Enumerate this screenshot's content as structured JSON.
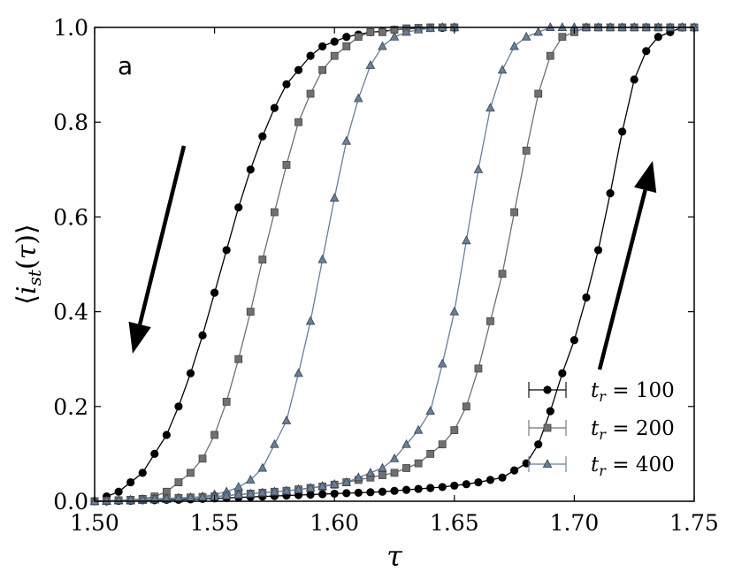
{
  "chart_data": {
    "type": "line",
    "xlabel": "τ",
    "ylabel": "⟨i_st(τ)⟩",
    "xlim": [
      1.5,
      1.75
    ],
    "ylim": [
      0.0,
      1.0
    ],
    "x_ticks": [
      "1.50",
      "1.55",
      "1.60",
      "1.65",
      "1.70",
      "1.75"
    ],
    "y_ticks": [
      "0.0",
      "0.2",
      "0.4",
      "0.6",
      "0.8",
      "1.0"
    ],
    "panel_label": "a",
    "legend_position": "lower-right",
    "annotations": [
      {
        "type": "arrow",
        "direction": "down",
        "meaning": "decreasing τ branch"
      },
      {
        "type": "arrow",
        "direction": "up",
        "meaning": "increasing τ branch"
      }
    ],
    "series": [
      {
        "name": "t_r = 100",
        "legend_sub": "r",
        "legend_value": "100",
        "marker": "circle",
        "color": "#000000",
        "branches": [
          {
            "x": [
              1.505,
              1.51,
              1.515,
              1.52,
              1.525,
              1.53,
              1.535,
              1.54,
              1.545,
              1.55,
              1.555,
              1.56,
              1.565,
              1.57,
              1.575,
              1.58,
              1.585,
              1.59,
              1.595,
              1.6,
              1.605,
              1.61,
              1.615,
              1.62,
              1.625,
              1.63,
              1.635,
              1.64,
              1.645,
              1.65
            ],
            "y": [
              0.01,
              0.02,
              0.04,
              0.06,
              0.1,
              0.14,
              0.2,
              0.27,
              0.35,
              0.44,
              0.53,
              0.62,
              0.7,
              0.77,
              0.83,
              0.88,
              0.91,
              0.94,
              0.96,
              0.97,
              0.98,
              0.985,
              0.99,
              0.992,
              0.995,
              0.997,
              0.998,
              0.999,
              0.999,
              1.0
            ]
          },
          {
            "x": [
              1.5,
              1.505,
              1.51,
              1.515,
              1.52,
              1.525,
              1.53,
              1.535,
              1.54,
              1.545,
              1.55,
              1.555,
              1.56,
              1.565,
              1.57,
              1.575,
              1.58,
              1.585,
              1.59,
              1.595,
              1.6,
              1.605,
              1.61,
              1.615,
              1.62,
              1.625,
              1.63,
              1.635,
              1.64,
              1.645,
              1.65,
              1.655,
              1.66,
              1.665,
              1.67,
              1.675,
              1.68,
              1.685,
              1.69,
              1.695,
              1.7,
              1.705,
              1.71,
              1.715,
              1.72,
              1.725,
              1.73,
              1.735,
              1.74,
              1.745,
              1.75
            ],
            "y": [
              0.0,
              0.0,
              0.001,
              0.001,
              0.002,
              0.002,
              0.003,
              0.003,
              0.004,
              0.005,
              0.006,
              0.007,
              0.008,
              0.009,
              0.01,
              0.011,
              0.012,
              0.013,
              0.014,
              0.015,
              0.016,
              0.017,
              0.018,
              0.019,
              0.02,
              0.022,
              0.024,
              0.026,
              0.028,
              0.03,
              0.033,
              0.036,
              0.04,
              0.045,
              0.05,
              0.065,
              0.08,
              0.12,
              0.19,
              0.27,
              0.34,
              0.43,
              0.53,
              0.65,
              0.78,
              0.89,
              0.95,
              0.98,
              0.99,
              1.0,
              1.0
            ]
          }
        ]
      },
      {
        "name": "t_r = 200",
        "legend_sub": "r",
        "legend_value": "200",
        "marker": "square",
        "color": "#707070",
        "branches": [
          {
            "x": [
              1.5,
              1.505,
              1.51,
              1.515,
              1.52,
              1.525,
              1.53,
              1.535,
              1.54,
              1.545,
              1.55,
              1.555,
              1.56,
              1.565,
              1.57,
              1.575,
              1.58,
              1.585,
              1.59,
              1.595,
              1.6,
              1.605,
              1.61,
              1.615,
              1.62,
              1.625,
              1.63,
              1.635,
              1.64,
              1.645,
              1.65
            ],
            "y": [
              0.0,
              0.001,
              0.002,
              0.003,
              0.005,
              0.01,
              0.02,
              0.04,
              0.06,
              0.09,
              0.14,
              0.21,
              0.3,
              0.4,
              0.51,
              0.61,
              0.71,
              0.8,
              0.86,
              0.91,
              0.94,
              0.96,
              0.98,
              0.99,
              0.99,
              0.995,
              0.998,
              0.999,
              1.0,
              1.0,
              1.0
            ]
          },
          {
            "x": [
              1.5,
              1.505,
              1.51,
              1.515,
              1.52,
              1.525,
              1.53,
              1.535,
              1.54,
              1.545,
              1.55,
              1.555,
              1.56,
              1.565,
              1.57,
              1.575,
              1.58,
              1.585,
              1.59,
              1.595,
              1.6,
              1.605,
              1.61,
              1.615,
              1.62,
              1.625,
              1.63,
              1.635,
              1.64,
              1.645,
              1.65,
              1.655,
              1.66,
              1.665,
              1.67,
              1.675,
              1.68,
              1.685,
              1.69,
              1.695,
              1.7,
              1.705,
              1.71,
              1.715,
              1.72,
              1.725,
              1.73,
              1.735,
              1.74,
              1.745,
              1.75
            ],
            "y": [
              0.0,
              0.001,
              0.002,
              0.003,
              0.004,
              0.005,
              0.006,
              0.007,
              0.008,
              0.009,
              0.01,
              0.012,
              0.014,
              0.016,
              0.018,
              0.02,
              0.022,
              0.025,
              0.028,
              0.031,
              0.035,
              0.04,
              0.045,
              0.05,
              0.055,
              0.06,
              0.07,
              0.08,
              0.1,
              0.12,
              0.15,
              0.2,
              0.28,
              0.38,
              0.48,
              0.61,
              0.74,
              0.86,
              0.94,
              0.98,
              0.99,
              1.0,
              1.0,
              1.0,
              1.0,
              1.0,
              1.0,
              1.0,
              1.0,
              1.0,
              1.0
            ]
          }
        ]
      },
      {
        "name": "t_r = 400",
        "legend_sub": "r",
        "legend_value": "400",
        "marker": "triangle",
        "color": "#6a7f96",
        "branches": [
          {
            "x": [
              1.5,
              1.505,
              1.51,
              1.515,
              1.52,
              1.525,
              1.53,
              1.535,
              1.54,
              1.545,
              1.55,
              1.555,
              1.56,
              1.565,
              1.57,
              1.575,
              1.58,
              1.585,
              1.59,
              1.595,
              1.6,
              1.605,
              1.61,
              1.615,
              1.62,
              1.625,
              1.63,
              1.635,
              1.64,
              1.645,
              1.65
            ],
            "y": [
              0.0,
              0.0,
              0.001,
              0.001,
              0.002,
              0.003,
              0.004,
              0.005,
              0.007,
              0.01,
              0.014,
              0.02,
              0.03,
              0.045,
              0.07,
              0.12,
              0.17,
              0.27,
              0.38,
              0.51,
              0.64,
              0.76,
              0.85,
              0.92,
              0.96,
              0.98,
              0.99,
              0.995,
              0.998,
              1.0,
              1.0
            ]
          },
          {
            "x": [
              1.5,
              1.505,
              1.51,
              1.515,
              1.52,
              1.525,
              1.53,
              1.535,
              1.54,
              1.545,
              1.55,
              1.555,
              1.56,
              1.565,
              1.57,
              1.575,
              1.58,
              1.585,
              1.59,
              1.595,
              1.6,
              1.605,
              1.61,
              1.615,
              1.62,
              1.625,
              1.63,
              1.635,
              1.64,
              1.645,
              1.65,
              1.655,
              1.66,
              1.665,
              1.67,
              1.675,
              1.68,
              1.685,
              1.69,
              1.695,
              1.7,
              1.705,
              1.71,
              1.715,
              1.72,
              1.725,
              1.73,
              1.735,
              1.74,
              1.745,
              1.75
            ],
            "y": [
              0.0,
              0.001,
              0.002,
              0.003,
              0.004,
              0.005,
              0.006,
              0.007,
              0.008,
              0.009,
              0.01,
              0.012,
              0.014,
              0.016,
              0.018,
              0.02,
              0.022,
              0.025,
              0.028,
              0.032,
              0.036,
              0.04,
              0.05,
              0.06,
              0.07,
              0.09,
              0.12,
              0.15,
              0.19,
              0.29,
              0.4,
              0.55,
              0.7,
              0.83,
              0.91,
              0.96,
              0.98,
              0.99,
              1.0,
              1.0,
              1.0,
              1.0,
              1.0,
              1.0,
              1.0,
              1.0,
              1.0,
              1.0,
              1.0,
              1.0,
              1.0
            ]
          }
        ]
      }
    ]
  }
}
